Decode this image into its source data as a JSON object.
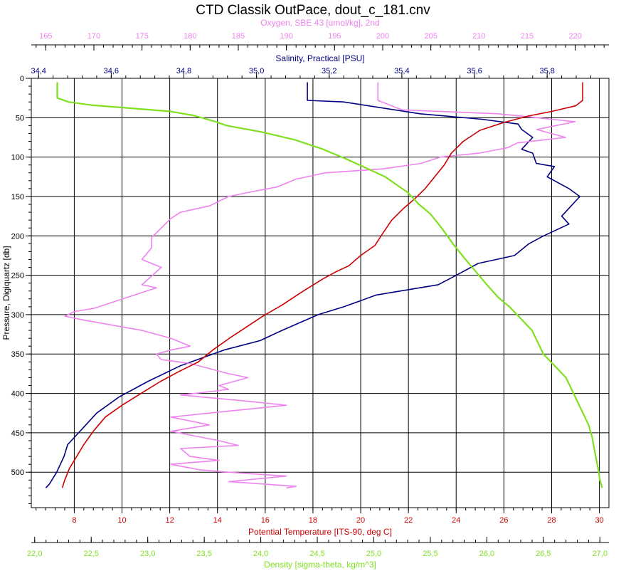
{
  "chart_data": {
    "type": "line",
    "title": "CTD Classik OutPace, dout_c_181.cnv",
    "grid": true,
    "axes": {
      "oxygen": {
        "label": "Oxygen, SBE 43 [umol/kg], 2nd",
        "position": "top-outer",
        "color": "#ee82ee",
        "range": [
          163.5,
          223.5
        ],
        "ticks": [
          "165",
          "170",
          "175",
          "180",
          "185",
          "190",
          "195",
          "200",
          "205",
          "210",
          "215",
          "220"
        ]
      },
      "salinity": {
        "label": "Salinity, Practical [PSU]",
        "position": "top-inner",
        "color": "#000080",
        "range": [
          34.38,
          35.97
        ],
        "ticks": [
          "34,4",
          "34,6",
          "34,8",
          "35,0",
          "35,2",
          "35,4",
          "35,6",
          "35,8"
        ]
      },
      "temperature": {
        "label": "Potential Temperature [ITS-90, deg C]",
        "position": "bottom-inner",
        "color": "#cc0000",
        "range": [
          6.2,
          30.4
        ],
        "ticks": [
          "8",
          "10",
          "12",
          "14",
          "16",
          "18",
          "20",
          "22",
          "24",
          "26",
          "28",
          "30"
        ]
      },
      "density": {
        "label": "Density [sigma-theta, kg/m^3]",
        "position": "bottom-outer",
        "color": "#80e020",
        "range": [
          21.97,
          27.08
        ],
        "ticks": [
          "22,0",
          "22,5",
          "23,0",
          "23,5",
          "24,0",
          "24,5",
          "25,0",
          "25,5",
          "26,0",
          "26,5",
          "27,0"
        ]
      },
      "pressure": {
        "label": "Pressure, Digiquartz [db]",
        "position": "left",
        "color": "#000000",
        "range": [
          0,
          545
        ],
        "reversed": true,
        "ticks": [
          "0",
          "50",
          "100",
          "150",
          "200",
          "250",
          "300",
          "350",
          "400",
          "450",
          "500"
        ]
      }
    },
    "series": [
      {
        "axis": "salinity",
        "color": "#000080",
        "points": [
          [
            35.14,
            5
          ],
          [
            35.14,
            28
          ],
          [
            35.24,
            30
          ],
          [
            35.45,
            45
          ],
          [
            35.62,
            52
          ],
          [
            35.72,
            58
          ],
          [
            35.73,
            65
          ],
          [
            35.76,
            75
          ],
          [
            35.73,
            90
          ],
          [
            35.76,
            95
          ],
          [
            35.77,
            108
          ],
          [
            35.82,
            112
          ],
          [
            35.8,
            125
          ],
          [
            35.86,
            140
          ],
          [
            35.89,
            150
          ],
          [
            35.86,
            165
          ],
          [
            35.84,
            175
          ],
          [
            35.86,
            185
          ],
          [
            35.79,
            200
          ],
          [
            35.75,
            210
          ],
          [
            35.71,
            225
          ],
          [
            35.61,
            235
          ],
          [
            35.55,
            250
          ],
          [
            35.5,
            262
          ],
          [
            35.33,
            275
          ],
          [
            35.24,
            290
          ],
          [
            35.17,
            300
          ],
          [
            35.07,
            320
          ],
          [
            35.01,
            333
          ],
          [
            34.91,
            345
          ],
          [
            34.79,
            365
          ],
          [
            34.7,
            385
          ],
          [
            34.62,
            405
          ],
          [
            34.56,
            425
          ],
          [
            34.52,
            445
          ],
          [
            34.48,
            465
          ],
          [
            34.47,
            480
          ],
          [
            34.45,
            500
          ],
          [
            34.43,
            515
          ],
          [
            34.42,
            520
          ]
        ]
      },
      {
        "axis": "oxygen",
        "color": "#ee82ee",
        "points": [
          [
            199.5,
            5
          ],
          [
            199.5,
            28
          ],
          [
            202.0,
            40
          ],
          [
            212.0,
            45
          ],
          [
            220.0,
            55
          ],
          [
            216.0,
            65
          ],
          [
            219.0,
            75
          ],
          [
            214.0,
            82
          ],
          [
            213.0,
            88
          ],
          [
            210.0,
            95
          ],
          [
            206.0,
            100
          ],
          [
            204.0,
            108
          ],
          [
            200.0,
            115
          ],
          [
            194.0,
            120
          ],
          [
            191.0,
            128
          ],
          [
            189.0,
            138
          ],
          [
            186.0,
            145
          ],
          [
            184.0,
            150
          ],
          [
            182.0,
            162
          ],
          [
            179.0,
            170
          ],
          [
            178.0,
            178
          ],
          [
            177.0,
            190
          ],
          [
            176.0,
            202
          ],
          [
            176.0,
            215
          ],
          [
            175.0,
            230
          ],
          [
            177.0,
            240
          ],
          [
            175.0,
            262
          ],
          [
            176.5,
            266
          ],
          [
            173.0,
            280
          ],
          [
            170.0,
            292
          ],
          [
            168.0,
            296
          ],
          [
            167.0,
            302
          ],
          [
            169.0,
            307
          ],
          [
            175.0,
            320
          ],
          [
            178.0,
            330
          ],
          [
            180.0,
            340
          ],
          [
            178.0,
            345
          ],
          [
            176.5,
            350
          ],
          [
            177.0,
            357
          ],
          [
            180.0,
            362
          ],
          [
            184.0,
            375
          ],
          [
            186.0,
            380
          ],
          [
            183.0,
            390
          ],
          [
            184.0,
            395
          ],
          [
            179.0,
            402
          ],
          [
            186.0,
            410
          ],
          [
            190.0,
            415
          ],
          [
            182.0,
            425
          ],
          [
            178.0,
            430
          ],
          [
            182.0,
            440
          ],
          [
            178.0,
            448
          ],
          [
            183.0,
            460
          ],
          [
            185.0,
            466
          ],
          [
            179.0,
            470
          ],
          [
            180.0,
            480
          ],
          [
            183.0,
            485
          ],
          [
            178.0,
            490
          ],
          [
            181.0,
            497
          ],
          [
            184.0,
            500
          ],
          [
            190.0,
            505
          ],
          [
            184.0,
            512
          ],
          [
            191.0,
            518
          ],
          [
            190.0,
            520
          ]
        ]
      },
      {
        "axis": "temperature",
        "color": "#cc0000",
        "points": [
          [
            29.3,
            5
          ],
          [
            29.3,
            28
          ],
          [
            29.0,
            35
          ],
          [
            28.0,
            42
          ],
          [
            27.0,
            48
          ],
          [
            26.0,
            56
          ],
          [
            25.0,
            66
          ],
          [
            24.3,
            80
          ],
          [
            23.8,
            95
          ],
          [
            23.5,
            110
          ],
          [
            23.1,
            125
          ],
          [
            22.7,
            140
          ],
          [
            22.3,
            152
          ],
          [
            21.8,
            165
          ],
          [
            21.3,
            180
          ],
          [
            20.9,
            198
          ],
          [
            20.6,
            212
          ],
          [
            20.0,
            225
          ],
          [
            19.5,
            238
          ],
          [
            19.0,
            245
          ],
          [
            18.4,
            255
          ],
          [
            17.6,
            270
          ],
          [
            16.7,
            288
          ],
          [
            15.9,
            302
          ],
          [
            15.1,
            318
          ],
          [
            14.5,
            330
          ],
          [
            13.8,
            345
          ],
          [
            13.2,
            360
          ],
          [
            12.4,
            372
          ],
          [
            11.6,
            385
          ],
          [
            10.8,
            400
          ],
          [
            10.0,
            415
          ],
          [
            9.3,
            430
          ],
          [
            8.8,
            448
          ],
          [
            8.4,
            465
          ],
          [
            8.1,
            480
          ],
          [
            7.8,
            495
          ],
          [
            7.6,
            510
          ],
          [
            7.5,
            520
          ]
        ]
      },
      {
        "axis": "density",
        "color": "#80e020",
        "points": [
          [
            22.2,
            5
          ],
          [
            22.2,
            25
          ],
          [
            22.3,
            30
          ],
          [
            22.5,
            34
          ],
          [
            22.85,
            38
          ],
          [
            23.2,
            42
          ],
          [
            23.4,
            47
          ],
          [
            23.6,
            55
          ],
          [
            23.7,
            60
          ],
          [
            24.0,
            68
          ],
          [
            24.3,
            78
          ],
          [
            24.55,
            90
          ],
          [
            24.75,
            102
          ],
          [
            24.95,
            115
          ],
          [
            25.1,
            125
          ],
          [
            25.2,
            135
          ],
          [
            25.3,
            145
          ],
          [
            25.4,
            160
          ],
          [
            25.5,
            172
          ],
          [
            25.6,
            190
          ],
          [
            25.7,
            210
          ],
          [
            25.8,
            228
          ],
          [
            25.9,
            245
          ],
          [
            26.0,
            262
          ],
          [
            26.1,
            278
          ],
          [
            26.2,
            290
          ],
          [
            26.3,
            305
          ],
          [
            26.4,
            320
          ],
          [
            26.45,
            335
          ],
          [
            26.5,
            350
          ],
          [
            26.6,
            365
          ],
          [
            26.7,
            380
          ],
          [
            26.75,
            395
          ],
          [
            26.8,
            410
          ],
          [
            26.85,
            425
          ],
          [
            26.9,
            440
          ],
          [
            26.93,
            455
          ],
          [
            26.95,
            470
          ],
          [
            26.97,
            485
          ],
          [
            26.99,
            500
          ],
          [
            27.0,
            510
          ],
          [
            27.02,
            520
          ]
        ]
      }
    ]
  }
}
